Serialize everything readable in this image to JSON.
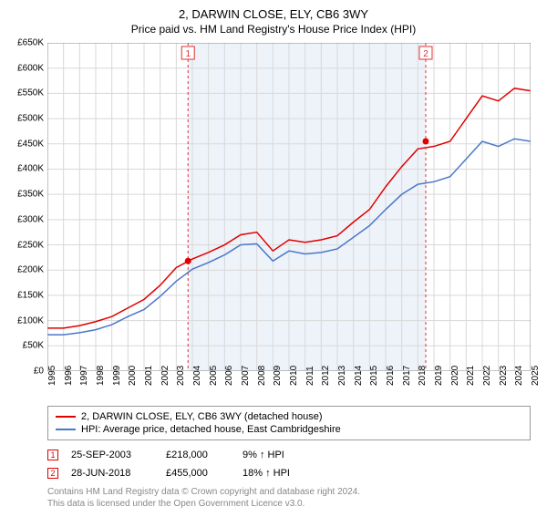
{
  "title": "2, DARWIN CLOSE, ELY, CB6 3WY",
  "subtitle": "Price paid vs. HM Land Registry's House Price Index (HPI)",
  "chart": {
    "type": "line",
    "background_color": "#ffffff",
    "grid_color": "#d8d8d8",
    "highlight_band_color": "#eef3fa",
    "x_start": 1995,
    "x_end": 2025,
    "x_tick_step": 1,
    "ylim": [
      0,
      650
    ],
    "y_tick_step": 50,
    "y_tick_prefix": "£",
    "y_tick_suffix": "K",
    "title_fontsize": 13,
    "label_fontsize": 10,
    "line_width": 1.5,
    "series": [
      {
        "name": "property",
        "color": "#e00000",
        "label": "2, DARWIN CLOSE, ELY, CB6 3WY (detached house)",
        "values_per_year": {
          "1995": 85,
          "1996": 85,
          "1997": 90,
          "1998": 98,
          "1999": 108,
          "2000": 125,
          "2001": 142,
          "2002": 170,
          "2003": 205,
          "2004": 222,
          "2005": 235,
          "2006": 250,
          "2007": 270,
          "2008": 275,
          "2009": 238,
          "2010": 260,
          "2011": 255,
          "2012": 260,
          "2013": 268,
          "2014": 295,
          "2015": 320,
          "2016": 365,
          "2017": 405,
          "2018": 440,
          "2019": 445,
          "2020": 455,
          "2021": 500,
          "2022": 545,
          "2023": 535,
          "2024": 560,
          "2025": 555
        }
      },
      {
        "name": "hpi",
        "color": "#4a78c8",
        "label": "HPI: Average price, detached house, East Cambridgeshire",
        "values_per_year": {
          "1995": 72,
          "1996": 72,
          "1997": 76,
          "1998": 82,
          "1999": 92,
          "2000": 108,
          "2001": 122,
          "2002": 148,
          "2003": 178,
          "2004": 202,
          "2005": 215,
          "2006": 230,
          "2007": 250,
          "2008": 252,
          "2009": 218,
          "2010": 238,
          "2011": 232,
          "2012": 235,
          "2013": 242,
          "2014": 265,
          "2015": 288,
          "2016": 320,
          "2017": 350,
          "2018": 370,
          "2019": 375,
          "2020": 385,
          "2021": 420,
          "2022": 455,
          "2023": 445,
          "2024": 460,
          "2025": 455
        }
      }
    ],
    "sale_markers": [
      {
        "label": "1",
        "year": 2003.73,
        "price_k": 218
      },
      {
        "label": "2",
        "year": 2018.49,
        "price_k": 455
      }
    ],
    "marker_line_color": "#e03030",
    "marker_dot_color": "#e00000",
    "highlight_start": 2003.73,
    "highlight_end": 2018.49
  },
  "legend": {
    "rows": [
      {
        "color": "#e00000",
        "text": "2, DARWIN CLOSE, ELY, CB6 3WY (detached house)"
      },
      {
        "color": "#4a78c8",
        "text": "HPI: Average price, detached house, East Cambridgeshire"
      }
    ]
  },
  "sales": [
    {
      "marker": "1",
      "date": "25-SEP-2003",
      "price": "£218,000",
      "pct": "9% ↑ HPI"
    },
    {
      "marker": "2",
      "date": "28-JUN-2018",
      "price": "£455,000",
      "pct": "18% ↑ HPI"
    }
  ],
  "attribution_line1": "Contains HM Land Registry data © Crown copyright and database right 2024.",
  "attribution_line2": "This data is licensed under the Open Government Licence v3.0."
}
